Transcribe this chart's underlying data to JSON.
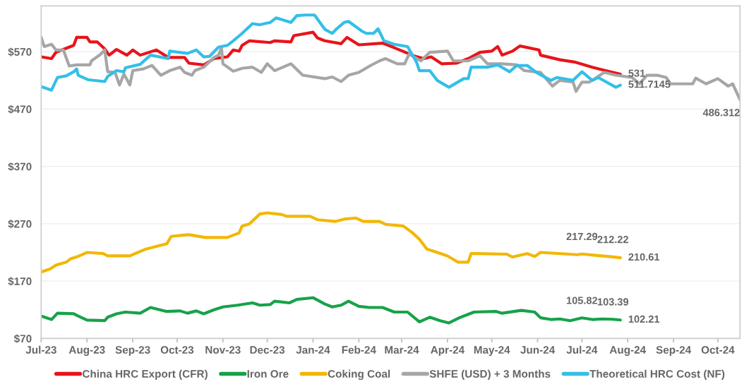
{
  "chart_data": {
    "type": "line",
    "legend": "bottom",
    "grid": "y",
    "line_style": "solid",
    "marker": "none",
    "xlim": [
      "2023-07-01",
      "2024-10-16"
    ],
    "xticks": [
      {
        "value": "2023-07-01",
        "label": "Jul-23"
      },
      {
        "value": "2023-08-01",
        "label": "Aug-23"
      },
      {
        "value": "2023-09-01",
        "label": "Sep-23"
      },
      {
        "value": "2023-10-01",
        "label": "Oct-23"
      },
      {
        "value": "2023-11-01",
        "label": "Nov-23"
      },
      {
        "value": "2023-12-01",
        "label": "Dec-23"
      },
      {
        "value": "2024-01-01",
        "label": "Jan-24"
      },
      {
        "value": "2024-02-01",
        "label": "Feb-24"
      },
      {
        "value": "2024-03-01",
        "label": "Mar-24"
      },
      {
        "value": "2024-04-01",
        "label": "Apr-24"
      },
      {
        "value": "2024-05-01",
        "label": "May-24"
      },
      {
        "value": "2024-06-01",
        "label": "Jun-24"
      },
      {
        "value": "2024-07-01",
        "label": "Jul-24"
      },
      {
        "value": "2024-08-01",
        "label": "Aug-24"
      },
      {
        "value": "2024-09-01",
        "label": "Sep-24"
      },
      {
        "value": "2024-10-01",
        "label": "Oct-24"
      }
    ],
    "ylim": [
      70,
      650
    ],
    "yticks": [
      {
        "value": 70,
        "label": "$70"
      },
      {
        "value": 170,
        "label": "$170"
      },
      {
        "value": 270,
        "label": "$270"
      },
      {
        "value": 370,
        "label": "$370"
      },
      {
        "value": 470,
        "label": "$470"
      },
      {
        "value": 570,
        "label": "$570"
      }
    ],
    "series": [
      {
        "name": "China HRC Export (CFR)",
        "color": "#e8141a",
        "x": [
          "2023-07-01",
          "2023-07-08",
          "2023-07-11",
          "2023-07-23",
          "2023-07-25",
          "2023-08-01",
          "2023-08-03",
          "2023-08-08",
          "2023-08-13",
          "2023-08-16",
          "2023-08-21",
          "2023-08-28",
          "2023-09-01",
          "2023-09-06",
          "2023-09-17",
          "2023-09-25",
          "2023-10-06",
          "2023-10-09",
          "2023-10-19",
          "2023-10-26",
          "2023-11-04",
          "2023-11-08",
          "2023-11-12",
          "2023-11-14",
          "2023-11-19",
          "2023-12-03",
          "2023-12-06",
          "2023-12-17",
          "2023-12-19",
          "2024-01-01",
          "2024-01-04",
          "2024-01-09",
          "2024-01-20",
          "2024-01-24",
          "2024-02-01",
          "2024-02-17",
          "2024-02-25",
          "2024-03-09",
          "2024-03-16",
          "2024-03-21",
          "2024-03-28",
          "2024-04-07",
          "2024-04-15",
          "2024-04-23",
          "2024-05-01",
          "2024-05-05",
          "2024-05-08",
          "2024-05-15",
          "2024-05-20",
          "2024-06-02",
          "2024-06-03",
          "2024-06-16",
          "2024-06-26",
          "2024-07-08",
          "2024-07-17",
          "2024-07-27"
        ],
        "values": [
          561,
          558,
          569,
          581,
          595,
          595,
          587,
          587,
          575,
          564,
          574,
          564,
          573,
          564,
          573,
          560,
          560,
          550,
          547,
          558,
          561,
          573,
          571,
          581,
          589,
          586,
          589,
          587,
          598,
          604,
          594,
          589,
          584,
          595,
          582,
          585,
          577,
          563,
          558,
          561,
          549,
          550,
          558,
          569,
          571,
          579,
          564,
          571,
          580,
          573,
          564,
          556,
          552,
          543,
          537,
          531
        ]
      },
      {
        "name": "Iron Ore",
        "color": "#17a24a",
        "x": [
          "2023-07-01",
          "2023-07-08",
          "2023-07-12",
          "2023-07-23",
          "2023-07-26",
          "2023-08-01",
          "2023-08-13",
          "2023-08-15",
          "2023-08-21",
          "2023-08-27",
          "2023-09-06",
          "2023-09-13",
          "2023-09-24",
          "2023-10-03",
          "2023-10-08",
          "2023-10-14",
          "2023-10-19",
          "2023-10-26",
          "2023-11-01",
          "2023-11-11",
          "2023-11-21",
          "2023-11-26",
          "2023-12-03",
          "2023-12-06",
          "2023-12-16",
          "2023-12-21",
          "2024-01-01",
          "2024-01-09",
          "2024-01-14",
          "2024-01-20",
          "2024-01-25",
          "2024-02-01",
          "2024-02-08",
          "2024-02-17",
          "2024-02-25",
          "2024-03-05",
          "2024-03-13",
          "2024-03-20",
          "2024-03-27",
          "2024-04-02",
          "2024-04-09",
          "2024-04-15",
          "2024-04-19",
          "2024-05-04",
          "2024-05-08",
          "2024-05-21",
          "2024-05-30",
          "2024-06-03",
          "2024-06-10",
          "2024-06-16",
          "2024-06-23",
          "2024-07-01",
          "2024-07-08",
          "2024-07-15",
          "2024-07-22",
          "2024-07-27"
        ],
        "values": [
          109,
          103,
          114,
          113,
          109,
          102,
          101,
          107,
          113,
          116,
          114,
          124,
          117,
          118,
          114,
          118,
          113,
          120,
          125,
          128,
          132,
          128,
          129,
          135,
          132,
          138,
          141,
          130,
          125,
          128,
          135,
          126,
          124,
          124,
          116,
          116,
          99,
          107,
          101,
          97,
          106,
          112,
          116,
          117,
          114,
          119,
          116,
          106,
          103,
          104,
          101,
          105.82,
          103,
          104,
          103.39,
          102.21
        ]
      },
      {
        "name": "Coking Coal",
        "color": "#f2b705",
        "x": [
          "2023-07-01",
          "2023-07-07",
          "2023-07-11",
          "2023-07-18",
          "2023-07-21",
          "2023-07-26",
          "2023-08-01",
          "2023-08-12",
          "2023-08-15",
          "2023-08-30",
          "2023-09-10",
          "2023-09-24",
          "2023-09-27",
          "2023-10-09",
          "2023-10-20",
          "2023-11-04",
          "2023-11-12",
          "2023-11-14",
          "2023-11-19",
          "2023-11-26",
          "2023-12-01",
          "2023-12-11",
          "2023-12-14",
          "2023-12-30",
          "2024-01-04",
          "2024-01-16",
          "2024-01-22",
          "2024-01-30",
          "2024-02-04",
          "2024-02-15",
          "2024-02-19",
          "2024-03-02",
          "2024-03-08",
          "2024-03-13",
          "2024-03-18",
          "2024-03-25",
          "2024-04-01",
          "2024-04-08",
          "2024-04-15",
          "2024-04-17",
          "2024-04-20",
          "2024-05-11",
          "2024-05-15",
          "2024-05-25",
          "2024-05-30",
          "2024-06-03",
          "2024-06-28",
          "2024-07-01",
          "2024-07-10",
          "2024-07-22",
          "2024-07-27"
        ],
        "values": [
          186,
          191,
          198,
          203,
          209,
          213,
          220,
          218,
          214,
          214,
          226,
          235,
          248,
          251,
          246,
          246,
          254,
          266,
          270,
          287,
          289,
          286,
          283,
          283,
          277,
          274,
          278,
          280,
          274,
          274,
          269,
          266,
          255,
          243,
          226,
          220,
          214,
          203,
          203,
          218,
          218,
          217,
          212,
          218,
          213,
          220,
          216,
          217.29,
          215,
          212.22,
          210.61
        ]
      },
      {
        "name": "SHFE (USD) + 3 Months",
        "color": "#a6a6a6",
        "x": [
          "2023-07-01",
          "2023-07-03",
          "2023-07-08",
          "2023-07-11",
          "2023-07-16",
          "2023-07-20",
          "2023-07-25",
          "2023-08-03",
          "2023-08-04",
          "2023-08-10",
          "2023-08-13",
          "2023-08-15",
          "2023-08-20",
          "2023-08-23",
          "2023-08-26",
          "2023-08-30",
          "2023-09-01",
          "2023-09-08",
          "2023-09-14",
          "2023-09-20",
          "2023-09-26",
          "2023-10-03",
          "2023-10-06",
          "2023-10-11",
          "2023-10-13",
          "2023-10-19",
          "2023-10-26",
          "2023-10-29",
          "2023-10-31",
          "2023-11-01",
          "2023-11-08",
          "2023-11-14",
          "2023-11-21",
          "2023-11-27",
          "2023-12-01",
          "2023-12-06",
          "2023-12-17",
          "2023-12-25",
          "2024-01-09",
          "2024-01-14",
          "2024-01-20",
          "2024-01-25",
          "2024-02-01",
          "2024-02-09",
          "2024-02-15",
          "2024-02-19",
          "2024-02-27",
          "2024-03-03",
          "2024-03-06",
          "2024-03-14",
          "2024-03-20",
          "2024-04-01",
          "2024-04-05",
          "2024-04-15",
          "2024-04-23",
          "2024-04-28",
          "2024-05-08",
          "2024-05-18",
          "2024-05-23",
          "2024-06-03",
          "2024-06-11",
          "2024-06-16",
          "2024-06-25",
          "2024-06-27",
          "2024-07-01",
          "2024-07-06",
          "2024-07-11",
          "2024-07-16",
          "2024-07-24",
          "2024-08-04",
          "2024-08-09",
          "2024-08-14",
          "2024-08-21",
          "2024-08-27",
          "2024-08-30",
          "2024-09-14",
          "2024-09-16",
          "2024-09-23",
          "2024-10-01",
          "2024-10-08",
          "2024-10-11",
          "2024-10-16"
        ],
        "values": [
          595,
          579,
          583,
          573,
          573,
          545,
          547,
          547,
          554,
          565,
          573,
          535,
          534,
          512,
          531,
          512,
          537,
          540,
          546,
          529,
          537,
          543,
          534,
          529,
          537,
          543,
          560,
          564,
          577,
          549,
          536,
          541,
          543,
          534,
          549,
          537,
          549,
          529,
          523,
          526,
          518,
          529,
          534,
          546,
          554,
          558,
          549,
          549,
          566,
          554,
          569,
          571,
          554,
          554,
          563,
          549,
          549,
          547,
          537,
          534,
          510,
          520,
          517,
          501,
          517,
          517,
          525,
          534,
          529,
          525,
          514,
          529,
          529,
          525,
          514,
          514,
          524,
          514,
          523,
          510,
          514,
          486.312
        ]
      },
      {
        "name": "Theoretical HRC Cost (NF)",
        "color": "#33bfe8",
        "x": [
          "2023-07-01",
          "2023-07-08",
          "2023-07-12",
          "2023-07-18",
          "2023-07-23",
          "2023-07-25",
          "2023-07-26",
          "2023-08-02",
          "2023-08-13",
          "2023-08-15",
          "2023-08-21",
          "2023-08-26",
          "2023-08-27",
          "2023-09-06",
          "2023-09-13",
          "2023-09-25",
          "2023-09-26",
          "2023-10-08",
          "2023-10-14",
          "2023-10-19",
          "2023-10-23",
          "2023-10-29",
          "2023-11-04",
          "2023-11-08",
          "2023-11-14",
          "2023-11-21",
          "2023-11-26",
          "2023-12-03",
          "2023-12-07",
          "2023-12-17",
          "2023-12-21",
          "2023-12-27",
          "2024-01-02",
          "2024-01-09",
          "2024-01-14",
          "2024-01-17",
          "2024-01-22",
          "2024-01-25",
          "2024-02-03",
          "2024-02-06",
          "2024-02-11",
          "2024-02-14",
          "2024-02-18",
          "2024-02-25",
          "2024-03-05",
          "2024-03-11",
          "2024-03-13",
          "2024-03-20",
          "2024-03-25",
          "2024-04-02",
          "2024-04-12",
          "2024-04-15",
          "2024-04-17",
          "2024-04-28",
          "2024-05-05",
          "2024-05-13",
          "2024-05-18",
          "2024-05-25",
          "2024-05-31",
          "2024-06-10",
          "2024-06-14",
          "2024-06-25",
          "2024-07-01",
          "2024-07-08",
          "2024-07-12",
          "2024-07-24",
          "2024-07-27"
        ],
        "values": [
          509,
          503,
          525,
          528,
          535,
          540,
          529,
          521,
          518,
          527,
          537,
          535,
          542,
          548,
          564,
          558,
          571,
          567,
          573,
          561,
          562,
          578,
          581,
          589,
          602,
          619,
          617,
          621,
          629,
          621,
          633,
          634,
          634,
          609,
          602,
          610,
          621,
          623,
          606,
          602,
          602,
          610,
          589,
          583,
          579,
          552,
          537,
          537,
          520,
          508,
          523,
          523,
          543,
          543,
          547,
          535,
          546,
          546,
          534,
          520,
          525,
          520,
          535,
          520,
          525,
          508,
          511.7145
        ]
      }
    ],
    "annotations": [
      {
        "text": "531",
        "x": "2024-07-27",
        "y": 531
      },
      {
        "text": "511.7145",
        "x": "2024-07-27",
        "y": 511.7145
      },
      {
        "text": "486.312",
        "x": "2024-10-16",
        "y": 486.312
      },
      {
        "text": "217.29",
        "x": "2024-07-01",
        "y": 217.29
      },
      {
        "text": "212.22",
        "x": "2024-07-22",
        "y": 212.22
      },
      {
        "text": "210.61",
        "x": "2024-07-27",
        "y": 210.61
      },
      {
        "text": "105.82",
        "x": "2024-07-01",
        "y": 105.82
      },
      {
        "text": "103.39",
        "x": "2024-07-22",
        "y": 103.39
      },
      {
        "text": "102.21",
        "x": "2024-07-27",
        "y": 102.21
      }
    ]
  }
}
